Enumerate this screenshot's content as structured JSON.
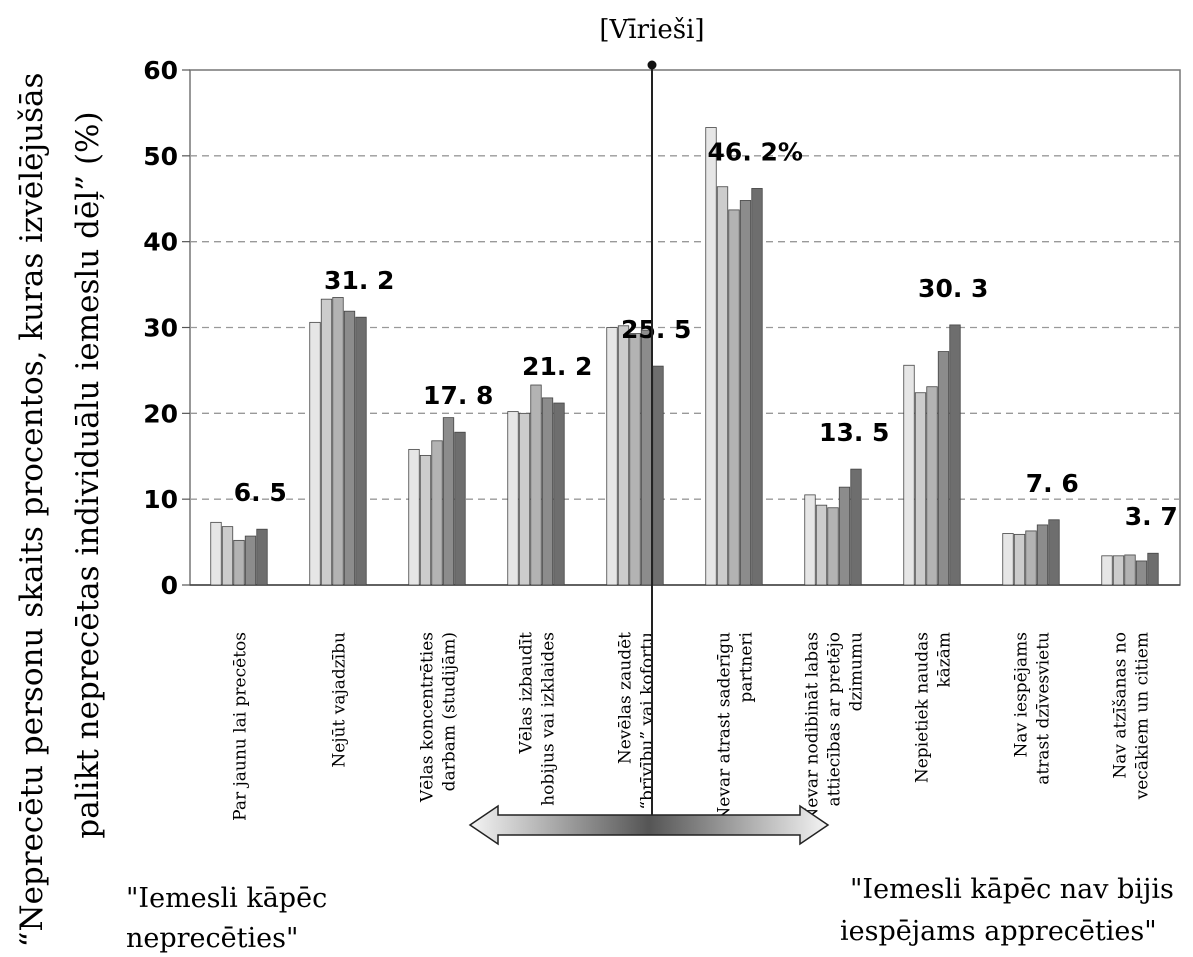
{
  "chart_data": {
    "type": "bar",
    "title": "[Vīrieši]",
    "ylabel_line1": "“Neprecētu personu skaits procentos, kuras izvēlējušās",
    "ylabel_line2": "palikt neprecētas individuālu iemeslu dēļ” (%)",
    "ylim": [
      0,
      60
    ],
    "yticks": [
      0,
      10,
      20,
      30,
      40,
      50,
      60
    ],
    "grid": true,
    "categories": [
      "Par jaunu lai precētos",
      "Nejūt vajadzību",
      "Vēlas koncentrēties darbam (studijām)",
      "Vēlas izbaudīt hobijus vai izklaides",
      "Nevēlas zaudēt “brīvību” vai kofortu",
      "Nevar atrast saderīgu partneri",
      "Nevar nodibināt labas attiecības ar pretējo dzimumu",
      "Nepietiek naudas kāzām",
      "Nav iespējams atrast dzīvesvietu",
      "Nav atzīšanas no vecākiem un citiem"
    ],
    "category_label_lines": [
      [
        "Par jaunu lai precētos"
      ],
      [
        "Nejūt vajadzību"
      ],
      [
        "Vēlas koncentrēties",
        "darbam (studijām)"
      ],
      [
        "Vēlas izbaudīt",
        "hobijus vai izklaides"
      ],
      [
        "Nevēlas zaudēt",
        "“brīvību” vai kofortu"
      ],
      [
        "Nevar atrast saderīgu",
        "partneri"
      ],
      [
        "Nevar nodibināt labas",
        "attiecības ar pretējo",
        "dzimumu"
      ],
      [
        "Nepietiek naudas",
        "kāzām"
      ],
      [
        "Nav iespējams",
        "atrast dzīvesvietu"
      ],
      [
        "Nav atzīšanas no",
        "vecākiem un citiem"
      ]
    ],
    "series_colors": [
      "#e6e6e6",
      "#cccccc",
      "#b3b3b3",
      "#8c8c8c",
      "#6e6e6e",
      "#000000"
    ],
    "series": [
      {
        "values": [
          7.3,
          30.6,
          15.8,
          20.2,
          30.0,
          53.3,
          10.5,
          25.6,
          6.0,
          3.4
        ]
      },
      {
        "values": [
          6.8,
          33.3,
          15.1,
          20.0,
          30.2,
          46.4,
          9.3,
          22.4,
          5.9,
          3.4
        ]
      },
      {
        "values": [
          5.2,
          33.5,
          16.8,
          23.3,
          29.3,
          43.7,
          9.0,
          23.1,
          6.3,
          3.5
        ]
      },
      {
        "values": [
          5.7,
          31.9,
          19.5,
          21.8,
          29.7,
          44.8,
          11.4,
          27.2,
          7.0,
          2.8
        ]
      },
      {
        "values": [
          6.5,
          31.2,
          17.8,
          21.2,
          25.5,
          46.2,
          13.5,
          30.3,
          7.6,
          3.7
        ]
      }
    ],
    "data_labels": [
      "6. 5",
      "31. 2",
      "17. 8",
      "21. 2",
      "25. 5",
      "46. 2%",
      "13. 5",
      "30. 3",
      "7. 6",
      "3. 7"
    ],
    "footer_left": [
      "\"Iemesli kāpēc",
      "neprecēties\""
    ],
    "footer_right": [
      "\"Iemesli kāpēc nav bijis",
      "iespējams apprecēties\""
    ]
  }
}
